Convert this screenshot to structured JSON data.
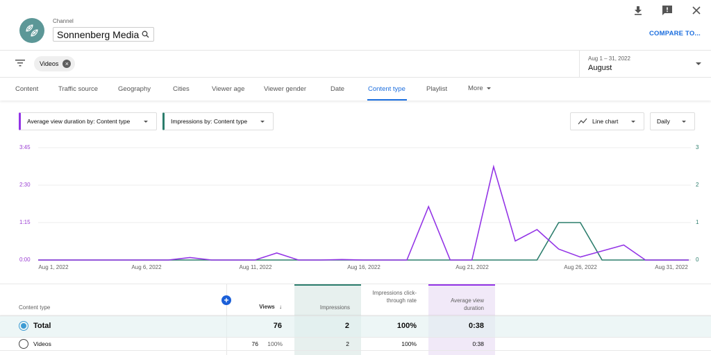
{
  "header": {
    "channel_label": "Channel",
    "channel_name": "Sonnenberg Media",
    "compare_label": "COMPARE TO...",
    "icons": [
      "download-icon",
      "feedback-icon",
      "close-icon"
    ]
  },
  "filters": {
    "chips": [
      {
        "label": "Videos"
      }
    ]
  },
  "date_picker": {
    "range": "Aug 1 – 31, 2022",
    "label": "August"
  },
  "tabs": [
    {
      "label": "Content"
    },
    {
      "label": "Traffic source"
    },
    {
      "label": "Geography"
    },
    {
      "label": "Cities"
    },
    {
      "label": "Viewer age"
    },
    {
      "label": "Viewer gender"
    },
    {
      "label": "Date"
    },
    {
      "label": "Content type",
      "active": true
    },
    {
      "label": "Playlist"
    },
    {
      "label": "More"
    }
  ],
  "chart_controls": {
    "primary_metric": "Average view duration by: Content type",
    "secondary_metric": "Impressions by: Content type",
    "chart_type": "Line chart",
    "granularity": "Daily"
  },
  "colors": {
    "primary": "#9334e6",
    "secondary": "#2b7d6c",
    "accent": "#1a6dde"
  },
  "chart_data": {
    "type": "line",
    "title": "",
    "x": [
      "Aug 1",
      "Aug 2",
      "Aug 3",
      "Aug 4",
      "Aug 5",
      "Aug 6",
      "Aug 7",
      "Aug 8",
      "Aug 9",
      "Aug 10",
      "Aug 11",
      "Aug 12",
      "Aug 13",
      "Aug 14",
      "Aug 15",
      "Aug 16",
      "Aug 17",
      "Aug 18",
      "Aug 19",
      "Aug 20",
      "Aug 21",
      "Aug 22",
      "Aug 23",
      "Aug 24",
      "Aug 25",
      "Aug 26",
      "Aug 27",
      "Aug 28",
      "Aug 29",
      "Aug 30",
      "Aug 31"
    ],
    "x_tick_labels": [
      "Aug 1, 2022",
      "Aug 6, 2022",
      "Aug 11, 2022",
      "Aug 16, 2022",
      "Aug 21, 2022",
      "Aug 26, 2022",
      "Aug 31, 2022"
    ],
    "y_left_ticks": [
      "0:00",
      "1:15",
      "2:30",
      "3:45"
    ],
    "y_right_ticks": [
      "0",
      "1",
      "2",
      "3"
    ],
    "ylabel_left": "Average view duration",
    "ylabel_right": "Impressions",
    "ylim_left_seconds": [
      0,
      225
    ],
    "ylim_right": [
      0,
      3
    ],
    "grid": true,
    "series": [
      {
        "name": "Average view duration (seconds)",
        "axis": "left",
        "color": "#9334e6",
        "values": [
          0,
          0,
          0,
          0,
          0,
          0,
          0,
          5,
          0,
          0,
          0,
          14,
          0,
          0,
          1,
          0,
          0,
          0,
          107,
          0,
          0,
          187,
          38,
          61,
          22,
          6,
          18,
          30,
          0,
          0,
          0
        ]
      },
      {
        "name": "Impressions",
        "axis": "right",
        "color": "#2b7d6c",
        "values": [
          0,
          0,
          0,
          0,
          0,
          0,
          0,
          0,
          0,
          0,
          0,
          0,
          0,
          0,
          0,
          0,
          0,
          0,
          0,
          0,
          0,
          0,
          0,
          0,
          1,
          1,
          0,
          0,
          0,
          0,
          0
        ]
      }
    ]
  },
  "table": {
    "columns": [
      {
        "label": "Content type"
      },
      {
        "label": "Views",
        "sorted": "desc"
      },
      {
        "label": "Impressions"
      },
      {
        "label": "Impressions click-through rate"
      },
      {
        "label": "Average view duration"
      }
    ],
    "total": {
      "label": "Total",
      "views": "76",
      "impressions": "2",
      "ctr": "100%",
      "avd": "0:38"
    },
    "rows": [
      {
        "label": "Videos",
        "views": "76",
        "views_pct": "100%",
        "impressions": "2",
        "ctr": "100%",
        "avd": "0:38"
      }
    ]
  }
}
